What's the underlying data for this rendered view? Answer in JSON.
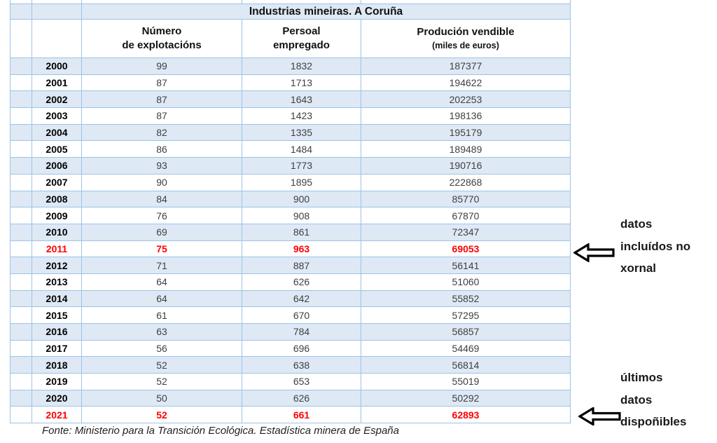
{
  "table": {
    "title": "Industrias mineiras. A Coruña",
    "columns": [
      {
        "line1": "Número",
        "line2": "de explotacións"
      },
      {
        "line1": "Persoal",
        "line2": "empregado"
      },
      {
        "line1": "Produción vendible",
        "line2": "(miles de euros)"
      }
    ],
    "rows": [
      {
        "year": "2000",
        "values": [
          "99",
          "1832",
          "187377"
        ],
        "highlight": false
      },
      {
        "year": "2001",
        "values": [
          "87",
          "1713",
          "194622"
        ],
        "highlight": false
      },
      {
        "year": "2002",
        "values": [
          "87",
          "1643",
          "202253"
        ],
        "highlight": false
      },
      {
        "year": "2003",
        "values": [
          "87",
          "1423",
          "198136"
        ],
        "highlight": false
      },
      {
        "year": "2004",
        "values": [
          "82",
          "1335",
          "195179"
        ],
        "highlight": false
      },
      {
        "year": "2005",
        "values": [
          "86",
          "1484",
          "189489"
        ],
        "highlight": false
      },
      {
        "year": "2006",
        "values": [
          "93",
          "1773",
          "190716"
        ],
        "highlight": false
      },
      {
        "year": "2007",
        "values": [
          "90",
          "1895",
          "222868"
        ],
        "highlight": false
      },
      {
        "year": "2008",
        "values": [
          "84",
          "900",
          "85770"
        ],
        "highlight": false
      },
      {
        "year": "2009",
        "values": [
          "76",
          "908",
          "67870"
        ],
        "highlight": false
      },
      {
        "year": "2010",
        "values": [
          "69",
          "861",
          "72347"
        ],
        "highlight": false
      },
      {
        "year": "2011",
        "values": [
          "75",
          "963",
          "69053"
        ],
        "highlight": true
      },
      {
        "year": "2012",
        "values": [
          "71",
          "887",
          "56141"
        ],
        "highlight": false
      },
      {
        "year": "2013",
        "values": [
          "64",
          "626",
          "51060"
        ],
        "highlight": false
      },
      {
        "year": "2014",
        "values": [
          "64",
          "642",
          "55852"
        ],
        "highlight": false
      },
      {
        "year": "2015",
        "values": [
          "61",
          "670",
          "57295"
        ],
        "highlight": false
      },
      {
        "year": "2016",
        "values": [
          "63",
          "784",
          "56857"
        ],
        "highlight": false
      },
      {
        "year": "2017",
        "values": [
          "56",
          "696",
          "54469"
        ],
        "highlight": false
      },
      {
        "year": "2018",
        "values": [
          "52",
          "638",
          "56814"
        ],
        "highlight": false
      },
      {
        "year": "2019",
        "values": [
          "52",
          "653",
          "55019"
        ],
        "highlight": false
      },
      {
        "year": "2020",
        "values": [
          "50",
          "626",
          "50292"
        ],
        "highlight": false
      },
      {
        "year": "2021",
        "values": [
          "52",
          "661",
          "62893"
        ],
        "highlight": true
      }
    ]
  },
  "annotations": [
    {
      "lines": [
        "datos",
        "incluídos no",
        "xornal"
      ]
    },
    {
      "lines": [
        "últimos",
        "datos",
        "dispoñibles"
      ]
    }
  ],
  "footer": "Fonte: Ministerio para la Transición Ecológica. Estadística minera de España",
  "colors": {
    "band": "#DEE9F5",
    "border": "#9DC3E6",
    "highlight": "#FF0000",
    "value_text": "#404040"
  }
}
